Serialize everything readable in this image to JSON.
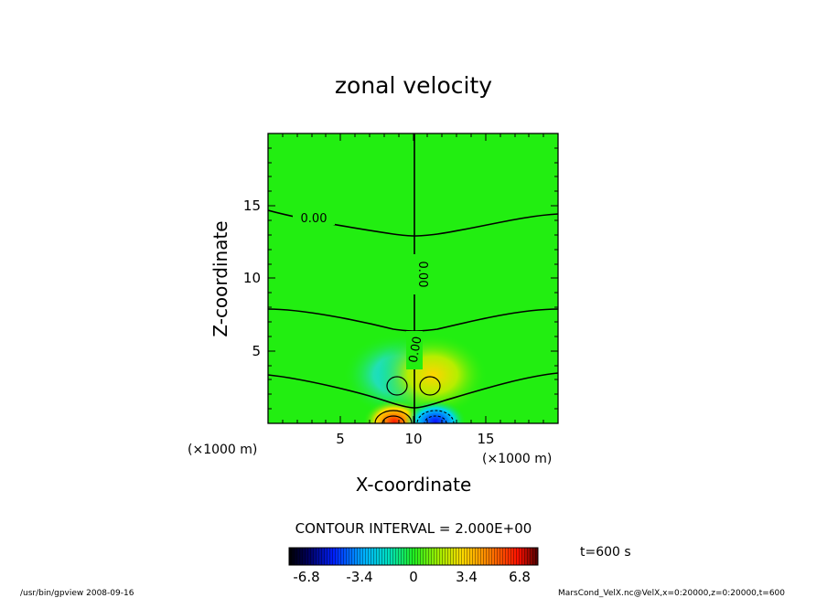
{
  "chart_data": {
    "type": "heatmap",
    "title": "zonal velocity",
    "xlabel": "X-coordinate",
    "ylabel": "Z-coordinate",
    "x_unit": "(×1000 m)",
    "y_unit": "(×1000 m)",
    "xlim": [
      0,
      20
    ],
    "ylim": [
      0,
      20
    ],
    "x_ticks": [
      "5",
      "10",
      "15"
    ],
    "y_ticks": [
      "5",
      "10",
      "15"
    ],
    "contour_labels": [
      "0.00",
      "0.00",
      "0.00"
    ],
    "contour_interval_text": "CONTOUR INTERVAL = 2.000E+00",
    "colorbar": {
      "ticks": [
        "-6.8",
        "-3.4",
        "0",
        "3.4",
        "6.8"
      ],
      "range": [
        -6.8,
        6.8
      ]
    },
    "time_text": "t=600 s",
    "features": [
      {
        "x": 8.8,
        "z": 2.5,
        "sign": "negative",
        "color": "cyan"
      },
      {
        "x": 11.0,
        "z": 2.5,
        "sign": "positive",
        "color": "yellow"
      },
      {
        "x": 8.8,
        "z": 0.2,
        "sign": "positive",
        "color": "red"
      },
      {
        "x": 11.0,
        "z": 0.2,
        "sign": "negative",
        "color": "blue"
      }
    ]
  },
  "footer": {
    "left": "/usr/bin/gpview   2008-09-16",
    "right": "MarsCond_VelX.nc@VelX,x=0:20000,z=0:20000,t=600"
  },
  "colors": {
    "background_field": "#22ee11",
    "positive_weak": "#aaee00",
    "positive_strong": "#ffd000",
    "extreme_positive": "#ff2a00",
    "negative_weak": "#22ddaa",
    "negative_strong": "#00c8e6",
    "extreme_negative": "#1010ff"
  }
}
